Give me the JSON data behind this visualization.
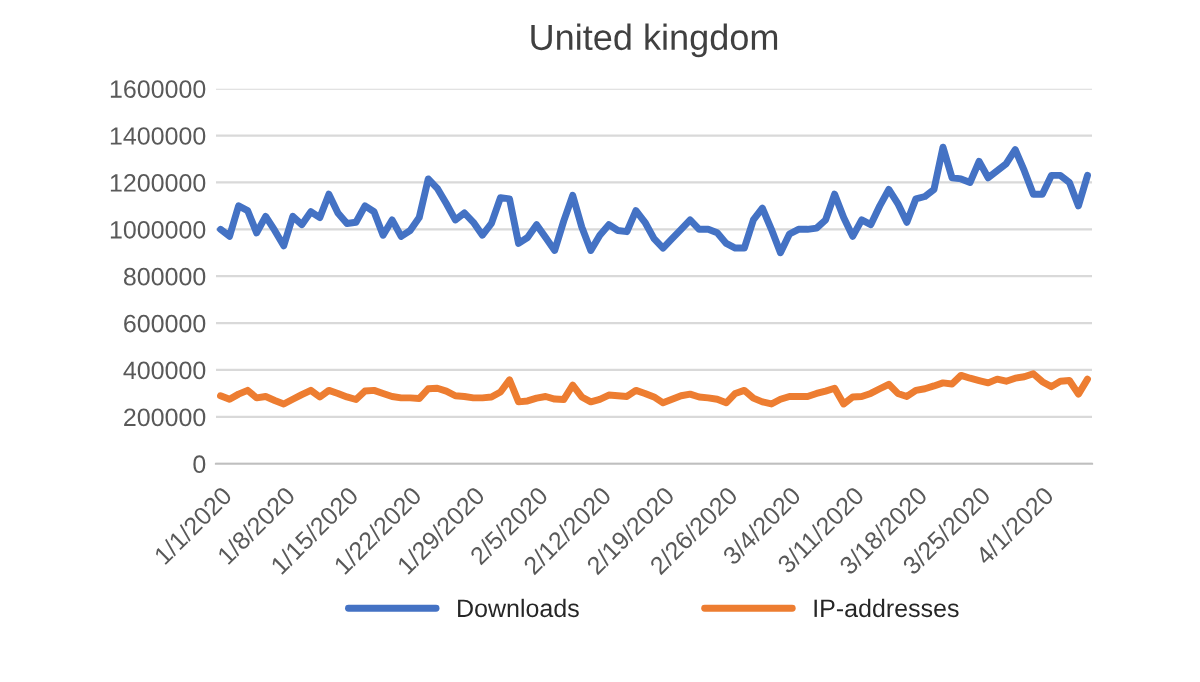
{
  "chart_data": {
    "type": "line",
    "title": "United kingdom",
    "categories": [
      "1/1/2020",
      null,
      null,
      null,
      null,
      null,
      null,
      "1/8/2020",
      null,
      null,
      null,
      null,
      null,
      null,
      "1/15/2020",
      null,
      null,
      null,
      null,
      null,
      null,
      "1/22/2020",
      null,
      null,
      null,
      null,
      null,
      null,
      "1/29/2020",
      null,
      null,
      null,
      null,
      null,
      null,
      "2/5/2020",
      null,
      null,
      null,
      null,
      null,
      null,
      "2/12/2020",
      null,
      null,
      null,
      null,
      null,
      null,
      "2/19/2020",
      null,
      null,
      null,
      null,
      null,
      null,
      "2/26/2020",
      null,
      null,
      null,
      null,
      null,
      null,
      "3/4/2020",
      null,
      null,
      null,
      null,
      null,
      null,
      "3/11/2020",
      null,
      null,
      null,
      null,
      null,
      null,
      "3/18/2020",
      null,
      null,
      null,
      null,
      null,
      null,
      "3/25/2020",
      null,
      null,
      null,
      null,
      null,
      null,
      "4/1/2020",
      null,
      null,
      null,
      null,
      null
    ],
    "series": [
      {
        "name": "Downloads",
        "color": "#4472c4",
        "values": [
          1000000,
          970000,
          1100000,
          1080000,
          985000,
          1055000,
          995000,
          930000,
          1055000,
          1020000,
          1075000,
          1050000,
          1150000,
          1070000,
          1025000,
          1030000,
          1100000,
          1075000,
          975000,
          1040000,
          970000,
          995000,
          1050000,
          1215000,
          1175000,
          1110000,
          1040000,
          1070000,
          1030000,
          975000,
          1025000,
          1135000,
          1130000,
          940000,
          965000,
          1020000,
          965000,
          910000,
          1035000,
          1145000,
          1010000,
          910000,
          975000,
          1020000,
          995000,
          990000,
          1080000,
          1030000,
          960000,
          920000,
          960000,
          1000000,
          1040000,
          1000000,
          1000000,
          985000,
          940000,
          920000,
          920000,
          1040000,
          1090000,
          1000000,
          900000,
          980000,
          1000000,
          1000000,
          1005000,
          1040000,
          1150000,
          1050000,
          970000,
          1040000,
          1020000,
          1100000,
          1170000,
          1110000,
          1030000,
          1130000,
          1140000,
          1170000,
          1350000,
          1220000,
          1215000,
          1200000,
          1290000,
          1220000,
          1250000,
          1280000,
          1340000,
          1250000,
          1150000,
          1150000,
          1230000,
          1230000,
          1200000,
          1100000,
          1230000
        ]
      },
      {
        "name": "IP-addresses",
        "color": "#ed7d31",
        "values": [
          290000,
          275000,
          297000,
          313000,
          281000,
          287000,
          270000,
          255000,
          275000,
          295000,
          313000,
          285000,
          313000,
          300000,
          285000,
          274000,
          310000,
          313000,
          300000,
          287000,
          281000,
          281000,
          278000,
          320000,
          322000,
          310000,
          290000,
          287000,
          281000,
          281000,
          285000,
          306000,
          358000,
          264000,
          268000,
          280000,
          287000,
          276000,
          274000,
          335000,
          285000,
          264000,
          275000,
          293000,
          290000,
          287000,
          313000,
          300000,
          285000,
          260000,
          275000,
          290000,
          297000,
          285000,
          281000,
          275000,
          260000,
          300000,
          313000,
          280000,
          264000,
          255000,
          275000,
          287000,
          287000,
          287000,
          300000,
          310000,
          322000,
          255000,
          285000,
          287000,
          300000,
          320000,
          339000,
          300000,
          287000,
          313000,
          320000,
          332000,
          345000,
          340000,
          377000,
          365000,
          355000,
          345000,
          361000,
          352000,
          365000,
          371000,
          384000,
          350000,
          329000,
          352000,
          355000,
          297000,
          361000
        ]
      }
    ],
    "ylim": [
      0,
      1600000
    ],
    "yticks": [
      0,
      200000,
      400000,
      600000,
      800000,
      1000000,
      1200000,
      1400000,
      1600000
    ],
    "grid": "y",
    "legend": "bottom",
    "marker": "none",
    "line_style": "solid"
  }
}
